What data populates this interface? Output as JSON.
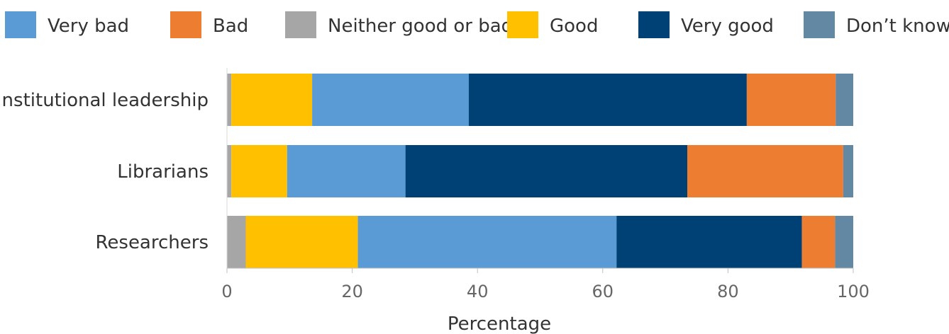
{
  "chart_data": {
    "type": "bar",
    "orientation": "horizontal",
    "stacked": true,
    "title": "",
    "xlabel": "Percentage",
    "ylabel": "",
    "xlim": [
      0,
      100
    ],
    "x_ticks": [
      "0",
      "20",
      "40",
      "60",
      "80",
      "100"
    ],
    "grid": false,
    "legend_position": "top",
    "categories": [
      "Institutional leadership",
      "Librarians",
      "Researchers"
    ],
    "legend_order": [
      "Very bad",
      "Bad",
      "Neither good or bad",
      "Good",
      "Very good",
      "Don’t know"
    ],
    "series": [
      {
        "name": "Neither good or bad",
        "color": "#a6a6a6",
        "values": [
          0.7,
          0.7,
          3.0
        ]
      },
      {
        "name": "Good",
        "color": "#ffc000",
        "values": [
          12.9,
          8.9,
          17.9
        ]
      },
      {
        "name": "Very bad",
        "color": "#5b9bd5",
        "values": [
          25.0,
          18.9,
          41.3
        ]
      },
      {
        "name": "Very good",
        "color": "#004175",
        "values": [
          44.4,
          45.0,
          29.6
        ]
      },
      {
        "name": "Bad",
        "color": "#ed7d31",
        "values": [
          14.2,
          24.9,
          5.3
        ]
      },
      {
        "name": "Don’t know",
        "color": "#6388a4",
        "values": [
          2.8,
          1.6,
          2.9
        ]
      }
    ]
  }
}
